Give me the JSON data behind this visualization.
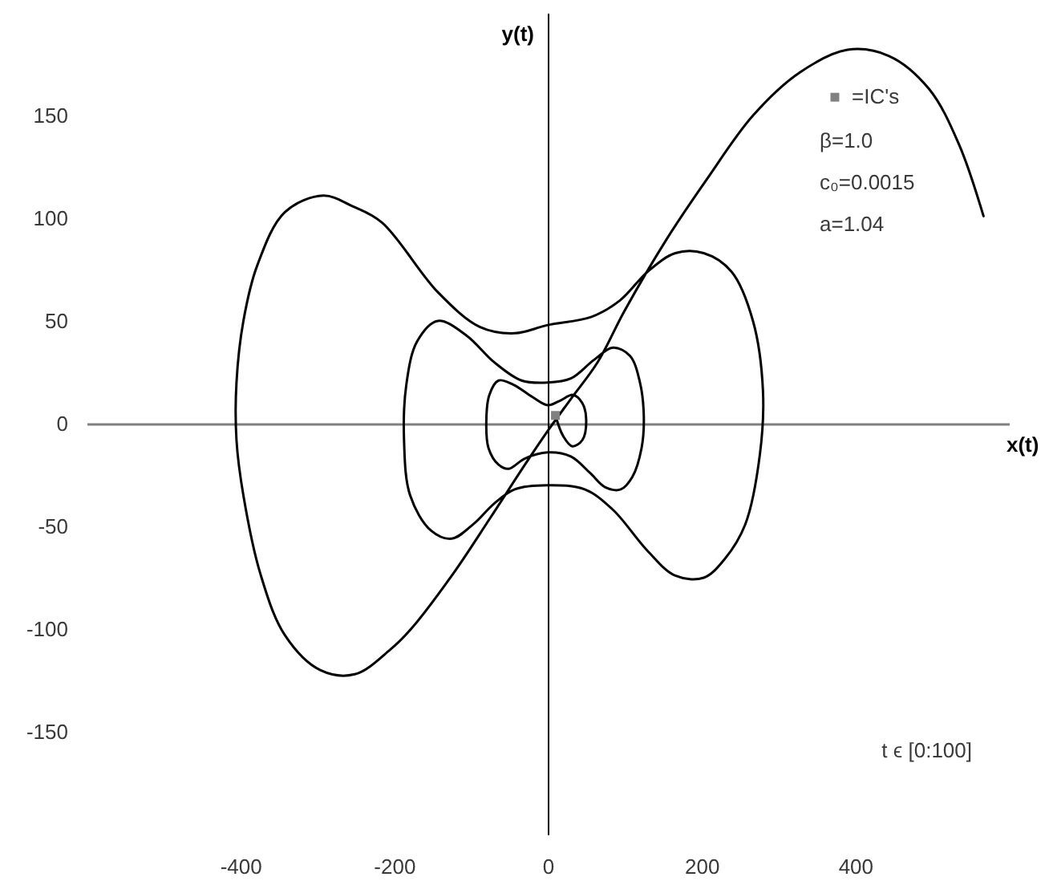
{
  "chart_data": {
    "type": "line",
    "xlabel": "x(t)",
    "ylabel": "y(t)",
    "xlim": [
      -600,
      600
    ],
    "ylim": [
      -200,
      200
    ],
    "xticks": [
      -400,
      -200,
      0,
      200,
      400
    ],
    "yticks": [
      -150,
      -100,
      -50,
      0,
      50,
      100,
      150
    ],
    "legend": "top right",
    "annotations": [
      "β=1.0",
      "c₀=0.0015",
      "a=1.04",
      "t ϵ [0:100]"
    ],
    "series": [
      {
        "color": "#000000",
        "x": [
          10,
          20,
          32,
          45,
          50,
          45,
          33,
          15,
          0,
          -20,
          -45,
          -64,
          -76,
          -80,
          -77,
          -64,
          -51,
          -30,
          0,
          30,
          55,
          75,
          95,
          110,
          122,
          125,
          120,
          107,
          85,
          60,
          30,
          0,
          -34,
          -70,
          -106,
          -143,
          -170,
          -184,
          -187,
          -179,
          -152,
          -125,
          -97,
          -70,
          -43,
          0,
          48,
          85,
          130,
          166,
          203,
          230,
          257,
          276,
          280,
          267,
          239,
          203,
          166,
          130,
          94,
          57,
          0,
          -43,
          -88,
          -143,
          -216,
          -255,
          -292,
          -342,
          -378,
          -396,
          -405,
          -405,
          -396,
          -374,
          -342,
          -296,
          -251,
          -205,
          -178,
          -123,
          -75,
          -28,
          1,
          30,
          65,
          100,
          155,
          207,
          267,
          328,
          390,
          444,
          496,
          535,
          567
        ],
        "values": [
          4,
          -6,
          -11,
          -8,
          2,
          10,
          14,
          11,
          9,
          13,
          19,
          21,
          14,
          0,
          -12,
          -20,
          -22,
          -17,
          -14,
          -16,
          -24,
          -31,
          -32,
          -26,
          -12,
          3,
          20,
          33,
          37,
          31,
          22,
          20,
          21,
          30,
          43,
          50,
          40,
          19,
          -8,
          -35,
          -52,
          -56,
          -49,
          -39,
          -32,
          -30,
          -32,
          -42,
          -62,
          -74,
          -75,
          -66,
          -49,
          -15,
          16,
          50,
          74,
          83,
          83,
          74,
          60,
          52,
          48,
          44,
          47,
          64,
          98,
          106,
          111,
          103,
          77,
          50,
          20,
          -8,
          -35,
          -73,
          -103,
          -120,
          -122,
          -110,
          -100,
          -73,
          -46,
          -19,
          -3,
          12,
          30,
          55,
          90,
          119,
          150,
          171,
          182,
          179,
          163,
          136,
          101
        ]
      },
      {
        "type": "scatter",
        "name": "=IC's",
        "marker": "square",
        "color": "#808080",
        "x": [
          10
        ],
        "values": [
          4
        ]
      }
    ]
  }
}
